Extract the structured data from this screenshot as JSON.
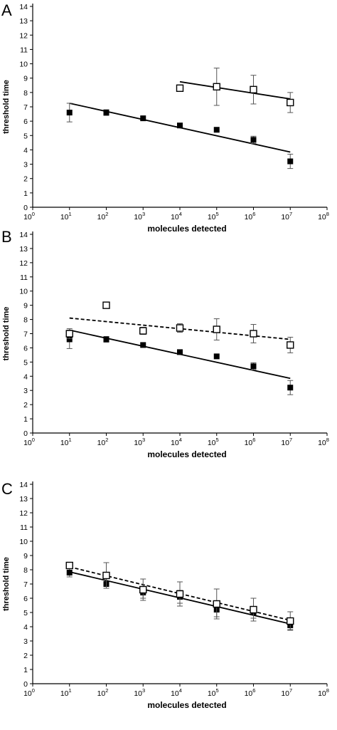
{
  "chart_data": [
    {
      "panel_label": "A",
      "type": "scatter",
      "xlabel": "molecules detected",
      "ylabel": "threshold time",
      "x_scale": "log",
      "xlim": [
        1,
        100000000
      ],
      "ylim": [
        0,
        14
      ],
      "x_ticks": [
        {
          "value": 1,
          "base": "10",
          "exp": "0"
        },
        {
          "value": 10,
          "base": "10",
          "exp": "1"
        },
        {
          "value": 100,
          "base": "10",
          "exp": "2"
        },
        {
          "value": 1000,
          "base": "10",
          "exp": "3"
        },
        {
          "value": 10000,
          "base": "10",
          "exp": "4"
        },
        {
          "value": 100000,
          "base": "10",
          "exp": "5"
        },
        {
          "value": 1000000,
          "base": "10",
          "exp": "6"
        },
        {
          "value": 10000000,
          "base": "10",
          "exp": "7"
        },
        {
          "value": 100000000,
          "base": "10",
          "exp": "8"
        }
      ],
      "y_ticks": [
        0,
        1,
        2,
        3,
        4,
        5,
        6,
        7,
        8,
        9,
        10,
        11,
        12,
        13,
        14
      ],
      "grid": false,
      "series": [
        {
          "marker": "filled-square",
          "fit_line": "solid",
          "points": [
            {
              "x": 10,
              "y": 6.6,
              "err": 0.65
            },
            {
              "x": 100,
              "y": 6.6,
              "err": 0.2
            },
            {
              "x": 1000,
              "y": 6.2,
              "err": 0.0
            },
            {
              "x": 10000,
              "y": 5.7,
              "err": 0.0
            },
            {
              "x": 100000,
              "y": 5.4,
              "err": 0.0
            },
            {
              "x": 1000000,
              "y": 4.7,
              "err": 0.25
            },
            {
              "x": 10000000,
              "y": 3.2,
              "err": 0.5
            }
          ],
          "fit": {
            "x0": 10,
            "y0": 7.25,
            "x1": 10000000,
            "y1": 3.85
          }
        },
        {
          "marker": "open-square",
          "fit_line": "solid",
          "points": [
            {
              "x": 10000,
              "y": 8.3,
              "err": 0.0
            },
            {
              "x": 100000,
              "y": 8.4,
              "err": 1.3
            },
            {
              "x": 1000000,
              "y": 8.2,
              "err": 1.0
            },
            {
              "x": 10000000,
              "y": 7.3,
              "err": 0.7
            }
          ],
          "fit": {
            "x0": 10000,
            "y0": 8.75,
            "x1": 10000000,
            "y1": 7.55
          }
        }
      ]
    },
    {
      "panel_label": "B",
      "type": "scatter",
      "xlabel": "molecules detected",
      "ylabel": "threshold time",
      "x_scale": "log",
      "xlim": [
        1,
        100000000
      ],
      "ylim": [
        0,
        14
      ],
      "x_ticks": [
        {
          "value": 1,
          "base": "10",
          "exp": "0"
        },
        {
          "value": 10,
          "base": "10",
          "exp": "1"
        },
        {
          "value": 100,
          "base": "10",
          "exp": "2"
        },
        {
          "value": 1000,
          "base": "10",
          "exp": "3"
        },
        {
          "value": 10000,
          "base": "10",
          "exp": "4"
        },
        {
          "value": 100000,
          "base": "10",
          "exp": "5"
        },
        {
          "value": 1000000,
          "base": "10",
          "exp": "6"
        },
        {
          "value": 10000000,
          "base": "10",
          "exp": "7"
        },
        {
          "value": 100000000,
          "base": "10",
          "exp": "8"
        }
      ],
      "y_ticks": [
        0,
        1,
        2,
        3,
        4,
        5,
        6,
        7,
        8,
        9,
        10,
        11,
        12,
        13,
        14
      ],
      "grid": false,
      "series": [
        {
          "marker": "filled-square",
          "fit_line": "solid",
          "points": [
            {
              "x": 10,
              "y": 6.6,
              "err": 0.65
            },
            {
              "x": 100,
              "y": 6.6,
              "err": 0.2
            },
            {
              "x": 1000,
              "y": 6.2,
              "err": 0.0
            },
            {
              "x": 10000,
              "y": 5.7,
              "err": 0.0
            },
            {
              "x": 100000,
              "y": 5.4,
              "err": 0.0
            },
            {
              "x": 1000000,
              "y": 4.7,
              "err": 0.25
            },
            {
              "x": 10000000,
              "y": 3.2,
              "err": 0.5
            }
          ],
          "fit": {
            "x0": 10,
            "y0": 7.25,
            "x1": 10000000,
            "y1": 3.85
          }
        },
        {
          "marker": "open-square",
          "fit_line": "dashed",
          "points": [
            {
              "x": 10,
              "y": 7.0,
              "err": 0.35
            },
            {
              "x": 100,
              "y": 9.0,
              "err": 0.0
            },
            {
              "x": 1000,
              "y": 7.2,
              "err": 0.25
            },
            {
              "x": 10000,
              "y": 7.4,
              "err": 0.3
            },
            {
              "x": 100000,
              "y": 7.3,
              "err": 0.75
            },
            {
              "x": 1000000,
              "y": 7.0,
              "err": 0.65
            },
            {
              "x": 10000000,
              "y": 6.2,
              "err": 0.55
            }
          ],
          "fit": {
            "x0": 10,
            "y0": 8.1,
            "x1": 10000000,
            "y1": 6.6
          }
        }
      ]
    },
    {
      "panel_label": "C",
      "type": "scatter",
      "xlabel": "molecules detected",
      "ylabel": "threshold time",
      "x_scale": "log",
      "xlim": [
        1,
        100000000
      ],
      "ylim": [
        0,
        14
      ],
      "x_ticks": [
        {
          "value": 1,
          "base": "10",
          "exp": "0"
        },
        {
          "value": 10,
          "base": "10",
          "exp": "1"
        },
        {
          "value": 100,
          "base": "10",
          "exp": "2"
        },
        {
          "value": 1000,
          "base": "10",
          "exp": "3"
        },
        {
          "value": 10000,
          "base": "10",
          "exp": "4"
        },
        {
          "value": 100000,
          "base": "10",
          "exp": "5"
        },
        {
          "value": 1000000,
          "base": "10",
          "exp": "6"
        },
        {
          "value": 10000000,
          "base": "10",
          "exp": "7"
        },
        {
          "value": 100000000,
          "base": "10",
          "exp": "8"
        }
      ],
      "y_ticks": [
        0,
        1,
        2,
        3,
        4,
        5,
        6,
        7,
        8,
        9,
        10,
        11,
        12,
        13,
        14
      ],
      "grid": false,
      "series": [
        {
          "marker": "filled-square",
          "fit_line": "solid",
          "points": [
            {
              "x": 10,
              "y": 7.8,
              "err": 0.3
            },
            {
              "x": 100,
              "y": 7.0,
              "err": 0.15
            },
            {
              "x": 1000,
              "y": 6.4,
              "err": 0.4
            },
            {
              "x": 10000,
              "y": 6.1,
              "err": 0.45
            },
            {
              "x": 100000,
              "y": 5.2,
              "err": 0.5
            },
            {
              "x": 1000000,
              "y": 5.0,
              "err": 0.4
            },
            {
              "x": 10000000,
              "y": 4.1,
              "err": 0.3
            }
          ],
          "fit": {
            "x0": 10,
            "y0": 7.85,
            "x1": 10000000,
            "y1": 4.2
          }
        },
        {
          "marker": "open-square",
          "fit_line": "dashed",
          "points": [
            {
              "x": 10,
              "y": 8.3,
              "err": 0.0
            },
            {
              "x": 100,
              "y": 7.6,
              "err": 0.9
            },
            {
              "x": 1000,
              "y": 6.6,
              "err": 0.75
            },
            {
              "x": 10000,
              "y": 6.3,
              "err": 0.85
            },
            {
              "x": 100000,
              "y": 5.6,
              "err": 1.05
            },
            {
              "x": 1000000,
              "y": 5.2,
              "err": 0.8
            },
            {
              "x": 10000000,
              "y": 4.4,
              "err": 0.65
            }
          ],
          "fit": {
            "x0": 10,
            "y0": 8.2,
            "x1": 10000000,
            "y1": 4.45
          }
        }
      ]
    }
  ]
}
